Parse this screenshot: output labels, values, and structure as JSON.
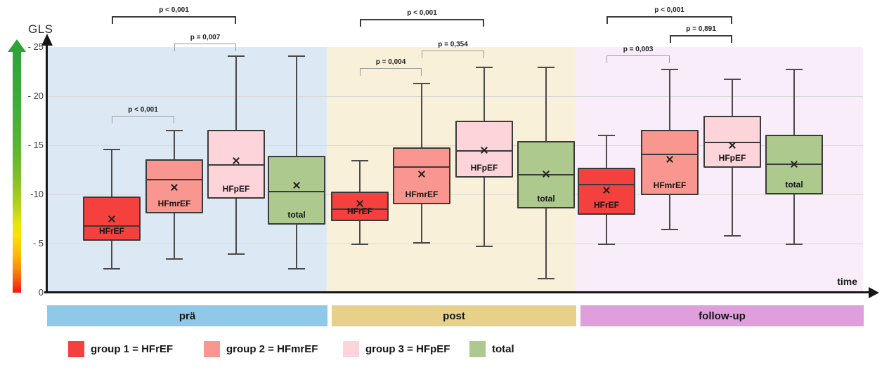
{
  "title": "GLS",
  "x_axis_label": "time",
  "y_ticks": [
    "- 25",
    "- 20",
    "- 15",
    "-10",
    "- 5",
    "0"
  ],
  "colors": {
    "group_HFrEF": "#f5413d",
    "group_HFmrEF": "#f9968f",
    "group_HFpEF": "#fcd4d9",
    "group_total": "#adc98e",
    "box_border": "#3a3a3a",
    "panel_pra_bg": "#dce9f5",
    "panel_post_bg": "#f8f0d8",
    "panel_followup_bg": "#f8edf8",
    "bar_pra": "#8fc9e7",
    "bar_post": "#e7d089",
    "bar_followup": "#df9fdc",
    "gls_gradient_stops": [
      "#2fa23a",
      "#7fc02b",
      "#e8e60c",
      "#fdbb08",
      "#fa8f08",
      "#f6160a"
    ]
  },
  "timeline_bars": [
    {
      "label": "prä",
      "color": "#8fc9e7"
    },
    {
      "label": "post",
      "color": "#e7d089"
    },
    {
      "label": "follow-up",
      "color": "#df9fdc"
    }
  ],
  "legend": [
    {
      "label": "group 1 = HFrEF",
      "color": "#f5413d"
    },
    {
      "label": "group 2 = HFmrEF",
      "color": "#f9968f"
    },
    {
      "label": "group 3 = HFpEF",
      "color": "#fcd4d9"
    },
    {
      "label": "total",
      "color": "#adc98e"
    }
  ],
  "chart_data": {
    "type": "box",
    "title": "GLS",
    "xlabel": "time",
    "ylabel": "GLS",
    "ylim": [
      0,
      -25
    ],
    "y_axis_inverted_magnitude": true,
    "gridlines_at": [
      -5,
      -10,
      -15,
      -20
    ],
    "group_order": [
      "HFrEF",
      "HFmrEF",
      "HFpEF",
      "total"
    ],
    "panels": [
      {
        "label": "prä",
        "groups": [
          {
            "name": "HFrEF",
            "whisker_low": -2.4,
            "box_low": -5.3,
            "median": -6.8,
            "mean": -7.5,
            "box_high": -9.8,
            "whisker_high": -14.6
          },
          {
            "name": "HFmrEF",
            "whisker_low": -3.4,
            "box_low": -8.1,
            "median": -11.5,
            "mean": -10.7,
            "box_high": -13.6,
            "whisker_high": -16.5
          },
          {
            "name": "HFpEF",
            "whisker_low": -3.9,
            "box_low": -9.6,
            "median": -13.0,
            "mean": -13.4,
            "box_high": -16.6,
            "whisker_high": -24.1
          },
          {
            "name": "total",
            "whisker_low": -2.4,
            "box_low": -6.9,
            "median": -10.3,
            "mean": -10.9,
            "box_high": -13.9,
            "whisker_high": -24.1
          }
        ],
        "p_values": [
          {
            "label": "p < 0,001",
            "between": [
              "HFrEF",
              "HFpEF"
            ]
          },
          {
            "label": "p = 0,007",
            "between": [
              "HFmrEF",
              "HFpEF"
            ]
          },
          {
            "label": "p < 0,001",
            "between": [
              "HFrEF",
              "HFmrEF"
            ]
          }
        ]
      },
      {
        "label": "post",
        "groups": [
          {
            "name": "HFrEF",
            "whisker_low": -4.9,
            "box_low": -7.3,
            "median": -8.5,
            "mean": -9.1,
            "box_high": -10.3,
            "whisker_high": -13.4
          },
          {
            "name": "HFmrEF",
            "whisker_low": -5.1,
            "box_low": -9.0,
            "median": -12.8,
            "mean": -12.1,
            "box_high": -14.8,
            "whisker_high": -21.3
          },
          {
            "name": "HFpEF",
            "whisker_low": -4.7,
            "box_low": -11.7,
            "median": -14.4,
            "mean": -14.5,
            "box_high": -17.5,
            "whisker_high": -22.9
          },
          {
            "name": "total",
            "whisker_low": -1.4,
            "box_low": -8.6,
            "median": -12.0,
            "mean": -12.1,
            "box_high": -15.4,
            "whisker_high": -22.9
          }
        ],
        "p_values": [
          {
            "label": "p < 0,001",
            "between": [
              "HFrEF",
              "HFpEF"
            ]
          },
          {
            "label": "p = 0,354",
            "between": [
              "HFmrEF",
              "HFpEF"
            ]
          },
          {
            "label": "p = 0,004",
            "between": [
              "HFrEF",
              "HFmrEF"
            ]
          }
        ]
      },
      {
        "label": "follow-up",
        "groups": [
          {
            "name": "HFrEF",
            "whisker_low": -4.9,
            "box_low": -7.9,
            "median": -11.0,
            "mean": -10.4,
            "box_high": -12.7,
            "whisker_high": -16.0
          },
          {
            "name": "HFmrEF",
            "whisker_low": -6.4,
            "box_low": -9.9,
            "median": -14.1,
            "mean": -13.6,
            "box_high": -16.6,
            "whisker_high": -22.7
          },
          {
            "name": "HFpEF",
            "whisker_low": -5.8,
            "box_low": -12.7,
            "median": -15.3,
            "mean": -15.0,
            "box_high": -18.0,
            "whisker_high": -21.7
          },
          {
            "name": "total",
            "whisker_low": -4.9,
            "box_low": -10.0,
            "median": -13.1,
            "mean": -13.1,
            "box_high": -16.1,
            "whisker_high": -22.7
          }
        ],
        "p_values": [
          {
            "label": "p < 0,001",
            "between": [
              "HFrEF",
              "HFpEF"
            ]
          },
          {
            "label": "p = 0,891",
            "between": [
              "HFmrEF",
              "HFpEF"
            ]
          },
          {
            "label": "p = 0,003",
            "between": [
              "HFrEF",
              "HFmrEF"
            ]
          }
        ]
      }
    ]
  }
}
